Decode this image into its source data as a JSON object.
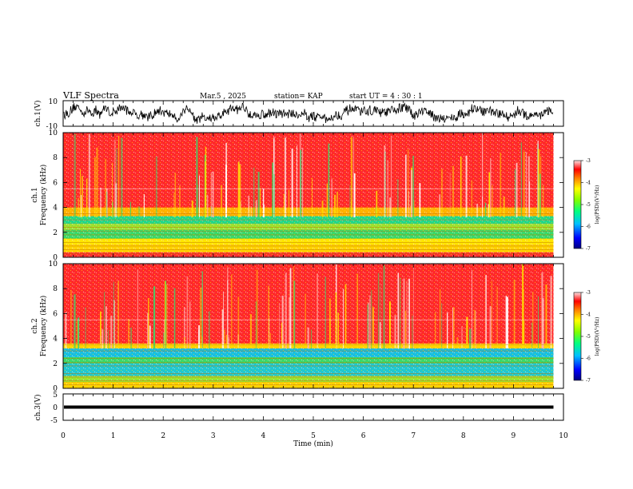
{
  "header": {
    "title": "VLF Spectra",
    "date": "Mar.5  , 2025",
    "station": "station= KAP",
    "start": "start  UT  =   4 : 30 : 1"
  },
  "chart_data": [
    {
      "type": "line",
      "name": "ch1-waveform",
      "ylabel": "ch.1(V)",
      "ylim": [
        -10,
        10
      ],
      "yticks": [
        "10",
        "-10"
      ],
      "xlim": [
        0,
        10
      ],
      "data_end_min": 9.8,
      "description_level": "noisy signal fluctuating roughly between -6 and 6 V"
    },
    {
      "type": "heatmap",
      "name": "ch1-spectrogram",
      "ylabel_line1": "ch.1",
      "ylabel_line2": "Frequency  (kHz)",
      "ylim": [
        0,
        10
      ],
      "yticks": [
        "0",
        "2",
        "4",
        "6",
        "8",
        "10"
      ],
      "xlim": [
        0,
        10
      ],
      "colorbar": {
        "label": "log(PSD)(V²/Hz)",
        "range": [
          -7,
          -3
        ],
        "ticks": [
          "-3",
          "-4",
          "-5",
          "-6",
          "-7"
        ]
      },
      "bands": [
        {
          "from_khz": 0.0,
          "to_khz": 0.4,
          "color": "#ff3030"
        },
        {
          "from_khz": 0.4,
          "to_khz": 1.0,
          "color": "#ffd200"
        },
        {
          "from_khz": 1.0,
          "to_khz": 1.5,
          "color": "#ffe600"
        },
        {
          "from_khz": 1.5,
          "to_khz": 2.2,
          "color": "#3ad86a"
        },
        {
          "from_khz": 2.2,
          "to_khz": 2.7,
          "color": "#9be030"
        },
        {
          "from_khz": 2.7,
          "to_khz": 3.3,
          "color": "#22d98a"
        },
        {
          "from_khz": 3.3,
          "to_khz": 4.0,
          "color": "#ffb000"
        },
        {
          "from_khz": 4.0,
          "to_khz": 10.0,
          "color": "#ff2a2a"
        }
      ]
    },
    {
      "type": "heatmap",
      "name": "ch2-spectrogram",
      "ylabel_line1": "ch.2",
      "ylabel_line2": "Frequency  (kHz)",
      "ylim": [
        0,
        10
      ],
      "yticks": [
        "0",
        "2",
        "4",
        "6",
        "8",
        "10"
      ],
      "xlim": [
        0,
        10
      ],
      "colorbar": {
        "label": "log(PSD)(V²/Hz)",
        "range": [
          -7,
          -3
        ],
        "ticks": [
          "-3",
          "-4",
          "-5",
          "-6",
          "-7"
        ]
      },
      "bands": [
        {
          "from_khz": 0.0,
          "to_khz": 0.5,
          "color": "#ffd200"
        },
        {
          "from_khz": 0.5,
          "to_khz": 1.0,
          "color": "#9be030"
        },
        {
          "from_khz": 1.0,
          "to_khz": 2.0,
          "color": "#20c8d0"
        },
        {
          "from_khz": 2.0,
          "to_khz": 2.5,
          "color": "#3ad86a"
        },
        {
          "from_khz": 2.5,
          "to_khz": 3.2,
          "color": "#18c0e0"
        },
        {
          "from_khz": 3.2,
          "to_khz": 3.6,
          "color": "#ffd200"
        },
        {
          "from_khz": 3.6,
          "to_khz": 10.0,
          "color": "#ff2a2a"
        }
      ]
    },
    {
      "type": "line",
      "name": "ch3-waveform",
      "ylabel": "ch.3(V)",
      "ylim": [
        -5,
        5
      ],
      "yticks": [
        "5",
        "0",
        "-5"
      ],
      "xlim": [
        0,
        10
      ],
      "level": 0,
      "data_end_min": 9.8
    }
  ],
  "xaxis": {
    "label": "Time  (min)",
    "ticks": [
      "0",
      "1",
      "2",
      "3",
      "4",
      "5",
      "6",
      "7",
      "8",
      "9",
      "10"
    ]
  },
  "colors": {
    "frame": "#000000",
    "trace": "#000000",
    "bg": "#ffffff"
  }
}
